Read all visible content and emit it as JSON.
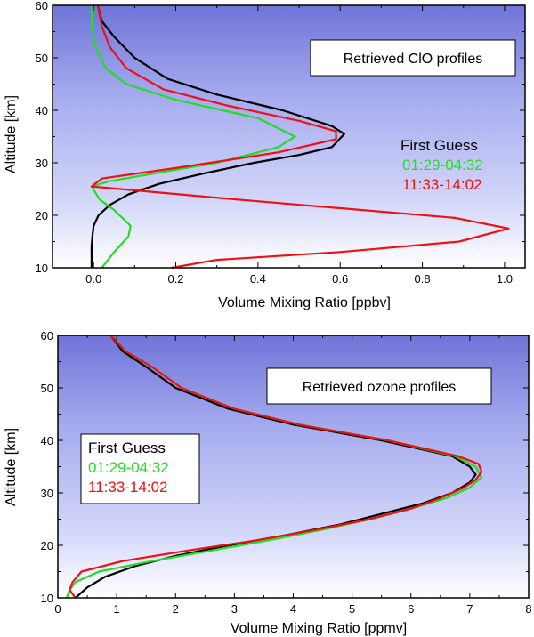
{
  "chart_data": [
    {
      "type": "line",
      "title": "Retrieved ClO profiles",
      "xlabel": "Volume Mixing Ratio [ppbv]",
      "ylabel": "Altitude [km]",
      "xlim": [
        -0.1,
        1.05
      ],
      "ylim": [
        10,
        60
      ],
      "xticks": [
        0.0,
        0.2,
        0.4,
        0.6,
        0.8,
        1.0
      ],
      "xtick_labels": [
        "0.0",
        "0.2",
        "0.4",
        "0.6",
        "0.8",
        "1.0"
      ],
      "yticks": [
        10,
        20,
        30,
        40,
        50,
        60
      ],
      "ytick_labels": [
        "10",
        "20",
        "30",
        "40",
        "50",
        "60"
      ],
      "legend": {
        "placement": "right",
        "entries": [
          "First Guess",
          "01:29-04:32",
          "11:33-14:02"
        ]
      },
      "series": [
        {
          "name": "First Guess",
          "color": "#000000",
          "points": [
            [
              -0.005,
              10
            ],
            [
              -0.005,
              12
            ],
            [
              -0.005,
              14
            ],
            [
              -0.003,
              16
            ],
            [
              0.0,
              18
            ],
            [
              0.012,
              20
            ],
            [
              0.04,
              22
            ],
            [
              0.085,
              24
            ],
            [
              0.16,
              26
            ],
            [
              0.27,
              28
            ],
            [
              0.39,
              30
            ],
            [
              0.5,
              31.5
            ],
            [
              0.58,
              33
            ],
            [
              0.61,
              35.5
            ],
            [
              0.58,
              37
            ],
            [
              0.46,
              40
            ],
            [
              0.3,
              43
            ],
            [
              0.18,
              46
            ],
            [
              0.1,
              50
            ],
            [
              0.05,
              54
            ],
            [
              0.02,
              57
            ],
            [
              0.01,
              60
            ]
          ]
        },
        {
          "name": "01:29-04:32",
          "color": "#22dd22",
          "points": [
            [
              0.02,
              10
            ],
            [
              0.05,
              13
            ],
            [
              0.085,
              16
            ],
            [
              0.09,
              18
            ],
            [
              0.05,
              21
            ],
            [
              0.015,
              23
            ],
            [
              -0.005,
              25.5
            ],
            [
              0.04,
              26.5
            ],
            [
              0.15,
              28
            ],
            [
              0.3,
              30
            ],
            [
              0.45,
              33
            ],
            [
              0.49,
              35
            ],
            [
              0.4,
              38.5
            ],
            [
              0.2,
              42
            ],
            [
              0.08,
              45
            ],
            [
              0.03,
              48
            ],
            [
              0.005,
              52
            ],
            [
              -0.005,
              56
            ],
            [
              -0.005,
              60
            ]
          ]
        },
        {
          "name": "11:33-14:02",
          "color": "#ee1111",
          "points": [
            [
              0.19,
              10
            ],
            [
              0.3,
              11.5
            ],
            [
              0.6,
              13
            ],
            [
              0.89,
              15
            ],
            [
              1.01,
              17.5
            ],
            [
              0.88,
              19.5
            ],
            [
              0.35,
              23
            ],
            [
              -0.005,
              25.5
            ],
            [
              0.02,
              27
            ],
            [
              0.2,
              29
            ],
            [
              0.45,
              32
            ],
            [
              0.59,
              34.5
            ],
            [
              0.59,
              36
            ],
            [
              0.5,
              38
            ],
            [
              0.32,
              41
            ],
            [
              0.17,
              44
            ],
            [
              0.08,
              48
            ],
            [
              0.04,
              52
            ],
            [
              0.02,
              56
            ],
            [
              0.01,
              60
            ]
          ]
        }
      ]
    },
    {
      "type": "line",
      "title": "Retrieved ozone profiles",
      "xlabel": "Volume Mixing Ratio [ppmv]",
      "ylabel": "Altitude [km]",
      "xlim": [
        0,
        8
      ],
      "ylim": [
        10,
        60
      ],
      "xticks": [
        0,
        1,
        2,
        3,
        4,
        5,
        6,
        7,
        8
      ],
      "xtick_labels": [
        "0",
        "1",
        "2",
        "3",
        "4",
        "5",
        "6",
        "7",
        "8"
      ],
      "yticks": [
        10,
        20,
        30,
        40,
        50,
        60
      ],
      "ytick_labels": [
        "10",
        "20",
        "30",
        "40",
        "50",
        "60"
      ],
      "legend": {
        "placement": "left",
        "entries": [
          "First Guess",
          "01:29-04:32",
          "11:33-14:02"
        ]
      },
      "series": [
        {
          "name": "First Guess",
          "color": "#000000",
          "points": [
            [
              0.3,
              10
            ],
            [
              0.5,
              12
            ],
            [
              0.8,
              14
            ],
            [
              1.3,
              16
            ],
            [
              2.0,
              18
            ],
            [
              2.9,
              20
            ],
            [
              3.9,
              22
            ],
            [
              4.8,
              24
            ],
            [
              5.5,
              26
            ],
            [
              6.2,
              28
            ],
            [
              6.7,
              30
            ],
            [
              7.0,
              32
            ],
            [
              7.1,
              33.5
            ],
            [
              7.0,
              35
            ],
            [
              6.7,
              37
            ],
            [
              5.5,
              40
            ],
            [
              4.0,
              43
            ],
            [
              2.9,
              46
            ],
            [
              2.0,
              50
            ],
            [
              1.5,
              54
            ],
            [
              1.1,
              57
            ],
            [
              0.9,
              60
            ]
          ]
        },
        {
          "name": "01:29-04:32",
          "color": "#22dd22",
          "points": [
            [
              0.15,
              10
            ],
            [
              0.2,
              11.5
            ],
            [
              0.3,
              13
            ],
            [
              0.7,
              15
            ],
            [
              1.6,
              17
            ],
            [
              2.6,
              19
            ],
            [
              3.6,
              21
            ],
            [
              4.5,
              23
            ],
            [
              5.3,
              25
            ],
            [
              6.0,
              27
            ],
            [
              6.6,
              29
            ],
            [
              7.0,
              31
            ],
            [
              7.2,
              33
            ],
            [
              7.1,
              35
            ],
            [
              6.75,
              37
            ],
            [
              5.6,
              40
            ],
            [
              4.1,
              43
            ],
            [
              3.0,
              46
            ],
            [
              2.1,
              50
            ],
            [
              1.6,
              54
            ],
            [
              1.15,
              57
            ],
            [
              0.9,
              60
            ]
          ]
        },
        {
          "name": "11:33-14:02",
          "color": "#ee1111",
          "points": [
            [
              0.3,
              10
            ],
            [
              0.2,
              11.5
            ],
            [
              0.25,
              13
            ],
            [
              0.4,
              15
            ],
            [
              1.1,
              17
            ],
            [
              2.2,
              19
            ],
            [
              3.4,
              21
            ],
            [
              4.4,
              23
            ],
            [
              5.3,
              25
            ],
            [
              6.0,
              27
            ],
            [
              6.5,
              29
            ],
            [
              6.9,
              31
            ],
            [
              7.1,
              32.5
            ],
            [
              7.2,
              34
            ],
            [
              7.15,
              35.5
            ],
            [
              6.8,
              37
            ],
            [
              5.6,
              40
            ],
            [
              4.1,
              43
            ],
            [
              3.0,
              46
            ],
            [
              2.1,
              50
            ],
            [
              1.6,
              54
            ],
            [
              1.15,
              57
            ],
            [
              0.9,
              60
            ]
          ]
        }
      ]
    }
  ]
}
